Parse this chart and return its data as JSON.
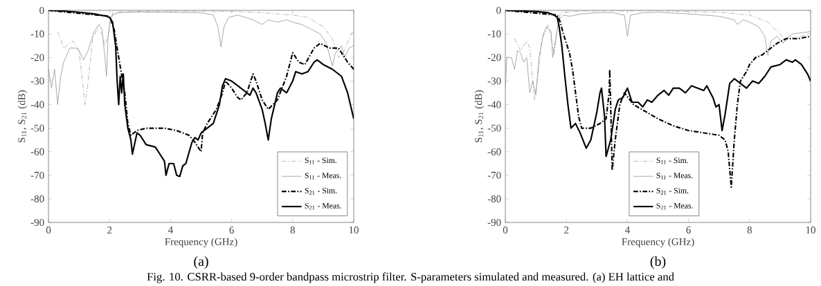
{
  "chart_data": [
    {
      "type": "line",
      "xlabel": "Frequency (GHz)",
      "ylabel": "S$_{11}$, S$_{21}$ (dB)",
      "xlim": [
        0,
        10
      ],
      "ylim": [
        -90,
        0
      ],
      "xticks": [
        0,
        2,
        4,
        6,
        8,
        10
      ],
      "yticks": [
        -90,
        -80,
        -70,
        -60,
        -50,
        -40,
        -30,
        -20,
        -10,
        0
      ],
      "grid": false,
      "legend": "bottom right",
      "marker": "none",
      "annotations": [
        "(a)",
        "Fig. 10. CSRR-based 9-order bandpass microstrip filter. S-parameters simulated and measured. (a) EH lattice and"
      ],
      "series": [
        {
          "name": "S$_{11}$ - Sim.",
          "color": "#a0a0a0",
          "line_style": "dashdot",
          "x": [
            0.3,
            0.5,
            0.8,
            1.0,
            1.2,
            1.3,
            1.45,
            1.6,
            1.75,
            1.85,
            2.0,
            2.1,
            2.5,
            4,
            6,
            7,
            8,
            8.5,
            9.0,
            9.3,
            9.5,
            9.7,
            9.85,
            10
          ],
          "values": [
            -9,
            -16,
            -13,
            -17,
            -40,
            -30,
            -12,
            -8,
            -10,
            -15,
            -8,
            -1,
            -0.5,
            -0.3,
            -0.4,
            -1,
            -2,
            -3,
            -7,
            -12,
            -20,
            -17,
            -12,
            -8
          ]
        },
        {
          "name": "S$_{11}$ - Meas.",
          "color": "#8c8c8c",
          "line_style": "solid",
          "x": [
            0,
            0.1,
            0.2,
            0.3,
            0.4,
            0.5,
            0.7,
            0.9,
            1.0,
            1.15,
            1.3,
            1.5,
            1.65,
            1.75,
            1.85,
            1.9,
            1.95,
            2.0,
            2.1,
            2.3,
            3,
            4,
            5,
            5.4,
            5.55,
            5.65,
            5.75,
            5.9,
            6.2,
            6.7,
            7.0,
            7.2,
            7.5,
            7.8,
            8.0,
            8.3,
            8.6,
            8.9,
            9.1,
            9.3,
            9.4,
            9.6,
            9.7,
            9.85,
            10
          ],
          "values": [
            -25,
            -33,
            -25,
            -40,
            -28,
            -22,
            -16,
            -16,
            -17,
            -21,
            -17,
            -9,
            -6,
            -8,
            -20,
            -28,
            -12,
            -5,
            -2,
            -1,
            -0.7,
            -0.8,
            -1,
            -2,
            -7,
            -15.5,
            -7,
            -3,
            -2,
            -4,
            -6,
            -4,
            -5,
            -4,
            -5,
            -6,
            -8,
            -10,
            -14,
            -23.5,
            -18,
            -15,
            -20,
            -16,
            -15
          ]
        },
        {
          "name": "S$_{21}$ - Sim.",
          "color": "#000000",
          "line_style": "dashdot",
          "x": [
            0,
            2.0,
            2.15,
            2.3,
            2.5,
            2.6,
            2.7,
            2.9,
            3.2,
            3.8,
            4.2,
            4.6,
            4.8,
            4.9,
            5.0,
            5.05,
            5.2,
            5.5,
            5.7,
            5.8,
            6.0,
            6.2,
            6.3,
            6.5,
            6.7,
            6.8,
            7.0,
            7.2,
            7.5,
            7.8,
            8.0,
            8.2,
            8.4,
            8.7,
            8.9,
            9.2,
            9.5,
            9.8,
            10
          ],
          "values": [
            0,
            -2.5,
            -8,
            -20,
            -35,
            -48,
            -53,
            -51,
            -50,
            -50,
            -51,
            -53,
            -56,
            -58,
            -60,
            -52,
            -48,
            -42,
            -35,
            -30,
            -33,
            -37,
            -38,
            -35,
            -27,
            -30,
            -38,
            -42,
            -38,
            -28,
            -18,
            -22,
            -23,
            -16,
            -14,
            -16,
            -16,
            -22,
            -25
          ]
        },
        {
          "name": "S$_{21}$ - Meas.",
          "color": "#000000",
          "line_style": "solid",
          "x": [
            0,
            0.5,
            1,
            1.5,
            1.9,
            2.0,
            2.1,
            2.2,
            2.25,
            2.3,
            2.35,
            2.4,
            2.45,
            2.5,
            2.6,
            2.7,
            2.75,
            2.9,
            3.0,
            3.2,
            3.5,
            3.7,
            3.8,
            3.85,
            3.95,
            4.1,
            4.2,
            4.3,
            4.4,
            4.5,
            4.7,
            4.8,
            4.9,
            5.0,
            5.2,
            5.4,
            5.6,
            5.7,
            5.8,
            6.0,
            6.2,
            6.4,
            6.6,
            6.7,
            6.8,
            7.0,
            7.1,
            7.2,
            7.3,
            7.5,
            7.6,
            7.8,
            8.0,
            8.1,
            8.3,
            8.5,
            8.7,
            8.8,
            9.0,
            9.3,
            9.6,
            9.8,
            10
          ],
          "values": [
            0,
            -0.3,
            -0.8,
            -1.5,
            -2.5,
            -3,
            -5,
            -15,
            -30,
            -40,
            -28,
            -35,
            -27,
            -40,
            -50,
            -55,
            -61,
            -52,
            -53,
            -57,
            -58,
            -62,
            -64,
            -70,
            -65,
            -65,
            -70,
            -70.5,
            -66,
            -65,
            -56,
            -54,
            -55,
            -52,
            -50,
            -48,
            -40,
            -32,
            -29,
            -30,
            -32,
            -34,
            -36,
            -33,
            -35,
            -42,
            -48,
            -55,
            -46,
            -35,
            -33,
            -35,
            -30,
            -26,
            -27,
            -26,
            -22,
            -21,
            -23,
            -25,
            -28,
            -35,
            -46
          ]
        }
      ]
    },
    {
      "type": "line",
      "xlabel": "Frequency (GHz)",
      "ylabel": "S$_{11}$, S$_{21}$ (dB)",
      "xlim": [
        0,
        10
      ],
      "ylim": [
        -90,
        0
      ],
      "xticks": [
        0,
        2,
        4,
        6,
        8,
        10
      ],
      "yticks": [
        -90,
        -80,
        -70,
        -60,
        -50,
        -40,
        -30,
        -20,
        -10,
        0
      ],
      "grid": false,
      "legend": "bottom",
      "marker": "none",
      "annotations": [
        "(b)"
      ],
      "series": [
        {
          "name": "S$_{11}$ - Sim.",
          "color": "#a0a0a0",
          "line_style": "dashdot",
          "x": [
            0.3,
            0.5,
            0.7,
            0.8,
            0.95,
            1.05,
            1.2,
            1.4,
            1.5,
            1.6,
            1.7,
            1.8,
            2.5,
            5,
            7,
            8.0,
            8.6,
            9.0,
            9.2,
            9.3,
            9.5,
            9.7,
            10
          ],
          "values": [
            -12,
            -17,
            -13,
            -16,
            -38,
            -30,
            -12,
            -6,
            -12,
            -19,
            -8,
            -1,
            -0.3,
            -0.2,
            -0.8,
            -2,
            -5,
            -10,
            -13,
            -11,
            -12,
            -11,
            -10
          ]
        },
        {
          "name": "S$_{11}$ - Meas.",
          "color": "#8c8c8c",
          "line_style": "solid",
          "x": [
            0,
            0.05,
            0.2,
            0.3,
            0.4,
            0.5,
            0.6,
            0.7,
            0.8,
            0.9,
            1.0,
            1.1,
            1.25,
            1.35,
            1.5,
            1.55,
            1.65,
            1.75,
            1.9,
            2.1,
            2.5,
            3.0,
            3.5,
            3.9,
            4.0,
            4.1,
            4.5,
            5,
            6,
            7,
            7.5,
            7.6,
            7.8,
            8.0,
            8.3,
            8.5,
            8.6,
            8.7,
            8.9,
            9.1,
            9.2,
            9.4,
            10
          ],
          "values": [
            -33,
            -20,
            -20,
            -25,
            -17,
            -18,
            -22,
            -20,
            -35,
            -30,
            -36,
            -20,
            -10,
            -7,
            -9,
            -20,
            -12,
            -4,
            -2,
            -2.5,
            -1.5,
            -1,
            -1,
            -2,
            -11,
            -2,
            -1,
            -0.8,
            -1.5,
            -2.5,
            -4,
            -6,
            -4,
            -5,
            -7,
            -11,
            -19,
            -13,
            -11,
            -14,
            -12,
            -10,
            -9
          ]
        },
        {
          "name": "S$_{21}$ - Sim.",
          "color": "#000000",
          "line_style": "dashdot",
          "x": [
            0,
            1.7,
            1.8,
            1.9,
            2.0,
            2.1,
            2.2,
            2.3,
            2.4,
            2.5,
            2.8,
            3.1,
            3.3,
            3.4,
            3.42,
            3.45,
            3.5,
            3.6,
            3.75,
            3.9,
            4.2,
            4.6,
            5.0,
            5.5,
            6.0,
            6.5,
            7.0,
            7.2,
            7.3,
            7.4,
            7.5,
            7.6,
            7.7,
            7.9,
            8.0,
            8.2,
            8.4,
            8.6,
            8.9,
            9.2,
            9.6,
            10
          ],
          "values": [
            0,
            -2,
            -5,
            -10,
            -14,
            -18,
            -25,
            -35,
            -45,
            -50,
            -50,
            -48,
            -46,
            -35,
            -25,
            -40,
            -68,
            -55,
            -40,
            -35,
            -40,
            -43,
            -46,
            -49,
            -51,
            -52,
            -53,
            -55,
            -60,
            -75,
            -55,
            -40,
            -30,
            -26,
            -23,
            -20,
            -19,
            -17,
            -14,
            -12,
            -12,
            -11
          ]
        },
        {
          "name": "S$_{21}$ - Meas.",
          "color": "#000000",
          "line_style": "solid",
          "x": [
            0,
            1.0,
            1.4,
            1.6,
            1.7,
            1.75,
            1.85,
            1.95,
            2.05,
            2.15,
            2.3,
            2.45,
            2.65,
            2.8,
            3.0,
            3.1,
            3.15,
            3.25,
            3.3,
            3.45,
            3.6,
            3.7,
            3.85,
            4.0,
            4.15,
            4.35,
            4.5,
            4.65,
            4.8,
            5.0,
            5.2,
            5.35,
            5.5,
            5.7,
            5.9,
            6.1,
            6.3,
            6.5,
            6.6,
            6.8,
            6.9,
            7.0,
            7.1,
            7.2,
            7.35,
            7.5,
            7.7,
            7.9,
            8.1,
            8.3,
            8.5,
            8.7,
            9.0,
            9.2,
            9.4,
            9.5,
            9.7,
            9.9,
            10
          ],
          "values": [
            0,
            -0.5,
            -1,
            -2,
            -3,
            -6,
            -15,
            -28,
            -40,
            -50,
            -48,
            -52,
            -58.5,
            -55,
            -43,
            -35,
            -33,
            -45,
            -62,
            -55,
            -42,
            -38,
            -37,
            -33,
            -39,
            -39,
            -41,
            -38,
            -39,
            -36,
            -34,
            -36,
            -33,
            -33,
            -35,
            -32,
            -33,
            -34,
            -32,
            -37,
            -41,
            -40,
            -51,
            -44,
            -31,
            -29,
            -31,
            -33,
            -30,
            -31,
            -28,
            -24,
            -23,
            -21,
            -22,
            -21,
            -23,
            -27,
            -30
          ]
        }
      ]
    }
  ]
}
